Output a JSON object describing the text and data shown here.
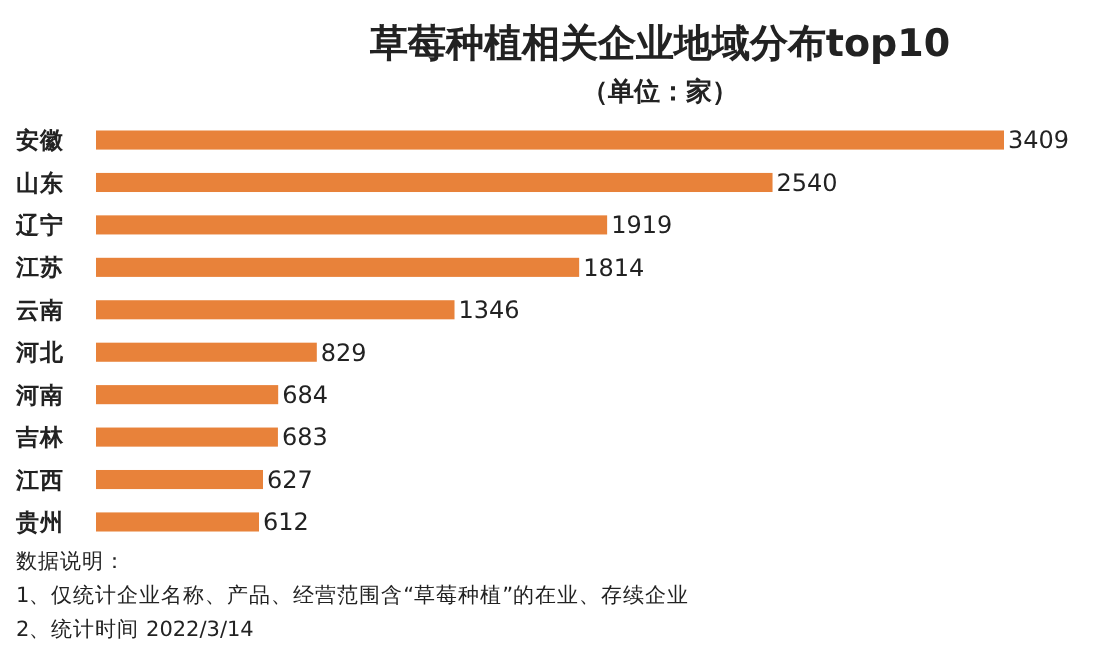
{
  "chart_data": {
    "type": "bar",
    "orientation": "horizontal",
    "title": "草莓种植相关企业地域分布top10",
    "subtitle": "（单位：家）",
    "categories": [
      "安徽",
      "山东",
      "辽宁",
      "江苏",
      "云南",
      "河北",
      "河南",
      "吉林",
      "江西",
      "贵州"
    ],
    "values": [
      3409,
      2540,
      1919,
      1814,
      1346,
      829,
      684,
      683,
      627,
      612
    ],
    "color": "#e8823a",
    "data_labels": true,
    "annotations": [
      "数据说明：",
      "1、仅统计企业名称、产品、经营范围含“草莓种植”的在业、存续企业",
      "2、统计时间 2022/3/14"
    ]
  }
}
